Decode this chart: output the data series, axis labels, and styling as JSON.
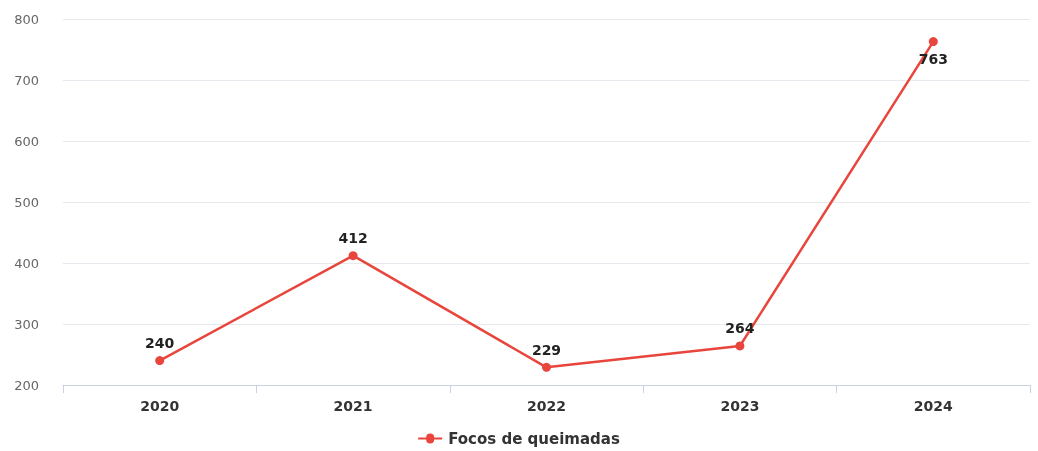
{
  "chart_data": {
    "type": "line",
    "categories": [
      "2020",
      "2021",
      "2022",
      "2023",
      "2024"
    ],
    "series": [
      {
        "name": "Focos de queimadas",
        "color": "#e8453c",
        "values": [
          240,
          412,
          229,
          264,
          763
        ]
      }
    ],
    "ylim": [
      200,
      800
    ],
    "yticks": [
      200,
      300,
      400,
      500,
      600,
      700,
      800
    ],
    "grid": "y",
    "legend": "bottom",
    "marker": "circle",
    "line_style": "solid",
    "data_labels": true
  }
}
